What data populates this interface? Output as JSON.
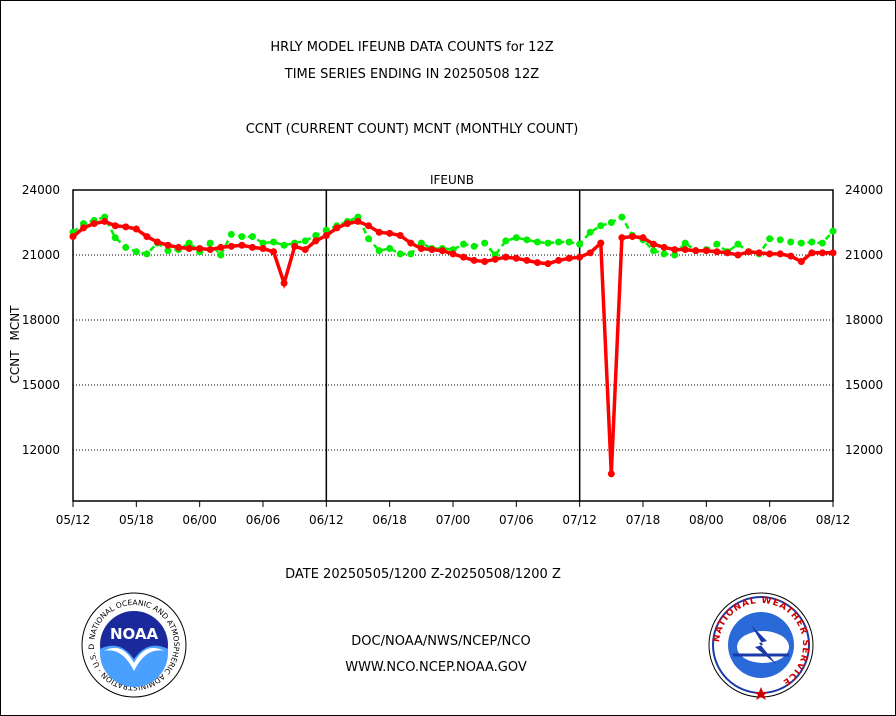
{
  "header": {
    "title_line1": "HRLY MODEL IFEUNB DATA COUNTS for 12Z",
    "title_line2": "TIME SERIES ENDING IN 20250508 12Z",
    "subtitle": "CCNT (CURRENT COUNT) MCNT (MONTHLY COUNT)"
  },
  "footer": {
    "date_range": "DATE 20250505/1200 Z-20250508/1200 Z",
    "link1": "DOC/NOAA/NWS/NCEP/NCO",
    "link2": "WWW.NCO.NCEP.NOAA.GOV",
    "noaa_logo_text": "NOAA",
    "noaa_ring_text": "NATIONAL OCEANIC AND ATMOSPHERIC ADMINISTRATION · U.S. DEPARTMENT OF COMMERCE ·",
    "nws_ring_text": "NATIONAL WEATHER SERVICE"
  },
  "colors": {
    "ccnt": "#ff0000",
    "mcnt": "#00ee00",
    "panel_title": "#0000cc",
    "footer_text": "#0000cc",
    "date_text": "#ff0000"
  },
  "chart_data": {
    "type": "line",
    "panel_title": "IFEUNB",
    "ylabel_ccnt": "CCNT",
    "ylabel_mcnt": "MCNT",
    "ylim": [
      10000,
      24000
    ],
    "yticks": [
      12000,
      15000,
      18000,
      21000,
      24000
    ],
    "ytick_labels": [
      "12000",
      "15000",
      "18000",
      "21000",
      "24000"
    ],
    "xlim": [
      0,
      72
    ],
    "xticks": [
      0,
      6,
      12,
      18,
      24,
      30,
      36,
      42,
      48,
      54,
      60,
      66,
      72
    ],
    "xtick_labels": [
      "05/12",
      "05/18",
      "06/00",
      "06/06",
      "06/12",
      "06/18",
      "07/00",
      "07/06",
      "07/12",
      "07/18",
      "08/00",
      "08/06",
      "08/12"
    ],
    "day_dividers": [
      24,
      48
    ],
    "grid": "horizontal dotted",
    "series": [
      {
        "name": "CCNT",
        "x": [
          0,
          1,
          2,
          3,
          4,
          5,
          6,
          7,
          8,
          9,
          10,
          11,
          12,
          13,
          14,
          15,
          16,
          17,
          18,
          19,
          20,
          21,
          22,
          23,
          24,
          25,
          26,
          27,
          28,
          29,
          30,
          31,
          32,
          33,
          34,
          35,
          36,
          37,
          38,
          39,
          40,
          41,
          42,
          43,
          44,
          45,
          46,
          47,
          48,
          49,
          50,
          51,
          52,
          53,
          54,
          55,
          56,
          57,
          58,
          59,
          60,
          61,
          62,
          63,
          64,
          65,
          66,
          67,
          68,
          69,
          70,
          71,
          72
        ],
        "values": [
          21850,
          22250,
          22450,
          22550,
          22350,
          22300,
          22200,
          21850,
          21600,
          21450,
          21350,
          21300,
          21300,
          21250,
          21350,
          21400,
          21450,
          21350,
          21300,
          21150,
          19700,
          21400,
          21250,
          21650,
          21900,
          22250,
          22450,
          22550,
          22350,
          22050,
          22000,
          21900,
          21550,
          21300,
          21250,
          21200,
          21050,
          20900,
          20750,
          20700,
          20800,
          20900,
          20850,
          20750,
          20650,
          20600,
          20750,
          20850,
          20900,
          21100,
          21550,
          10900,
          21800,
          21850,
          21800,
          21500,
          21350,
          21250,
          21250,
          21200,
          21200,
          21150,
          21100,
          21000,
          21150,
          21100,
          21050,
          21050,
          20950,
          20700,
          21100,
          21100,
          21100
        ],
        "color": "#ff0000"
      },
      {
        "name": "MCNT",
        "x": [
          0,
          1,
          2,
          3,
          4,
          5,
          6,
          7,
          8,
          9,
          10,
          11,
          12,
          13,
          14,
          15,
          16,
          17,
          18,
          19,
          20,
          21,
          22,
          23,
          24,
          25,
          26,
          27,
          28,
          29,
          30,
          31,
          32,
          33,
          34,
          35,
          36,
          37,
          38,
          39,
          40,
          41,
          42,
          43,
          44,
          45,
          46,
          47,
          48,
          49,
          50,
          51,
          52,
          53,
          54,
          55,
          56,
          57,
          58,
          59,
          60,
          61,
          62,
          63,
          64,
          65,
          66,
          67,
          68,
          69,
          70,
          71,
          72
        ],
        "values": [
          22050,
          22450,
          22600,
          22750,
          21800,
          21350,
          21150,
          21050,
          21550,
          21200,
          21250,
          21550,
          21150,
          21550,
          21000,
          21950,
          21850,
          21850,
          21550,
          21600,
          21450,
          21550,
          21650,
          21900,
          22150,
          22350,
          22550,
          22750,
          21750,
          21200,
          21300,
          21050,
          21050,
          21550,
          21300,
          21300,
          21250,
          21500,
          21400,
          21550,
          21000,
          21650,
          21800,
          21700,
          21600,
          21550,
          21600,
          21600,
          21500,
          22050,
          22350,
          22500,
          22750,
          21900,
          21700,
          21200,
          21050,
          21000,
          21550,
          21200,
          21250,
          21500,
          21150,
          21500,
          21150,
          21050,
          21750,
          21700,
          21600,
          21550,
          21600,
          21550,
          22100
        ],
        "color": "#00ee00"
      }
    ]
  }
}
